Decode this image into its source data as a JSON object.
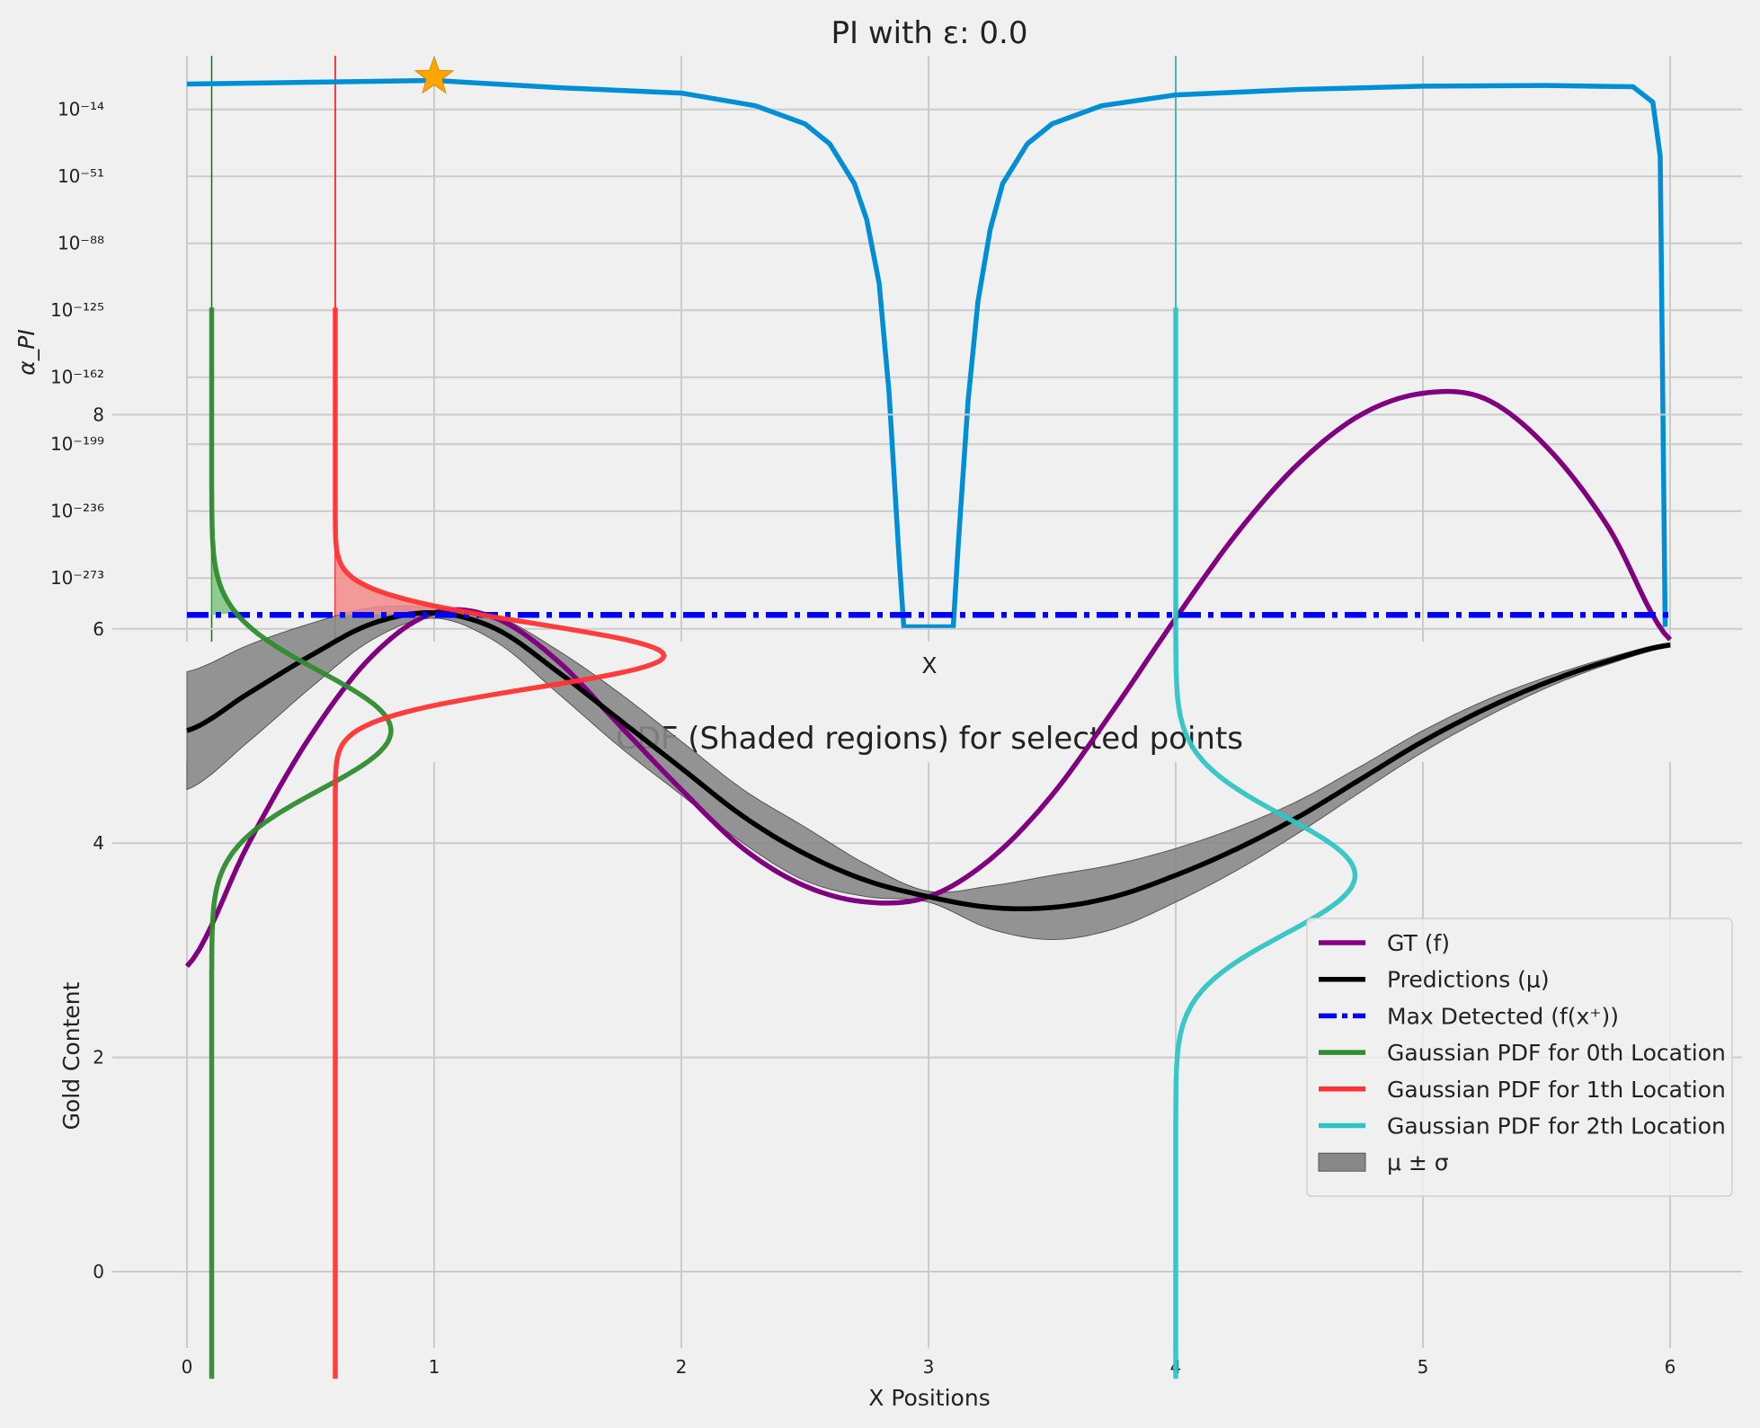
{
  "chart_data": [
    {
      "type": "line",
      "title": "PI with ε: 0.0",
      "xlabel": "X",
      "ylabel": "α_PI",
      "yscale": "log",
      "ytick_exponents": [
        -14,
        -51,
        -88,
        -125,
        -162,
        -199,
        -236,
        -273
      ],
      "ytick_labels": [
        "10⁻¹⁴",
        "10⁻⁵¹",
        "10⁻⁸⁸",
        "10⁻¹²⁵",
        "10⁻¹⁶²",
        "10⁻¹⁹⁹",
        "10⁻²³⁶",
        "10⁻²⁷³"
      ],
      "xlim": [
        0,
        6
      ],
      "x_gridlines": [
        0,
        1,
        2,
        3,
        4,
        5,
        6
      ],
      "grid": true,
      "series": [
        {
          "color": "#008fd5",
          "x": [
            0,
            0.5,
            1.0,
            1.5,
            2.0,
            2.3,
            2.5,
            2.6,
            2.7,
            2.75,
            2.8,
            2.84,
            2.88,
            2.9,
            3.1,
            3.12,
            3.16,
            3.2,
            3.25,
            3.3,
            3.4,
            3.5,
            3.7,
            4.0,
            4.5,
            5.0,
            5.5,
            5.85,
            5.93,
            5.96,
            5.98
          ],
          "log10_y": [
            0,
            1,
            2,
            -2,
            -5,
            -12,
            -22,
            -33,
            -55,
            -75,
            -110,
            -170,
            -260,
            -300,
            -300,
            -255,
            -175,
            -120,
            -80,
            -55,
            -33,
            -22,
            -12,
            -6,
            -3,
            -1.2,
            -0.8,
            -1.5,
            -10,
            -40,
            -300
          ]
        }
      ],
      "vlines": [
        {
          "x": 0.1,
          "color": "#008000"
        },
        {
          "x": 0.6,
          "color": "#ff0000"
        },
        {
          "x": 4.0,
          "color": "#20b2aa"
        }
      ],
      "marker": {
        "x": 1.0,
        "log10_y": 2,
        "shape": "star",
        "color": "#ffa500"
      }
    },
    {
      "type": "line",
      "title": "CDF (Shaded regions) for selected points",
      "xlabel": "X Positions",
      "ylabel": "Gold Content",
      "xlim": [
        -0.3,
        6.3
      ],
      "ylim": [
        -1.5,
        9.5
      ],
      "xticks": [
        0,
        1,
        2,
        3,
        4,
        5,
        6
      ],
      "yticks": [
        0,
        2,
        4,
        6,
        8
      ],
      "grid": true,
      "legend": "right",
      "gt": {
        "name": "GT (f)",
        "color": "#800080",
        "x": [
          0,
          0.25,
          0.5,
          0.75,
          1.0,
          1.25,
          1.5,
          1.75,
          2.0,
          2.25,
          2.5,
          2.75,
          3.0,
          3.25,
          3.5,
          3.75,
          4.0,
          4.25,
          4.5,
          4.75,
          5.0,
          5.25,
          5.5,
          5.75,
          6.0
        ],
        "y": [
          2.85,
          4.0,
          5.0,
          5.75,
          6.15,
          6.1,
          5.7,
          5.1,
          4.5,
          3.95,
          3.6,
          3.45,
          3.5,
          3.85,
          4.45,
          5.25,
          6.1,
          6.9,
          7.55,
          8.0,
          8.2,
          8.15,
          7.7,
          6.95,
          5.9
        ]
      },
      "predictions": {
        "name": "Predictions (μ)",
        "color": "#000000",
        "x": [
          0,
          0.25,
          0.5,
          0.75,
          1.0,
          1.25,
          1.5,
          1.75,
          2.0,
          2.25,
          2.5,
          2.75,
          3.0,
          3.25,
          3.5,
          3.75,
          4.0,
          4.25,
          4.5,
          4.75,
          5.0,
          5.25,
          5.5,
          5.75,
          6.0
        ],
        "y": [
          5.05,
          5.4,
          5.75,
          6.05,
          6.15,
          6.0,
          5.6,
          5.15,
          4.7,
          4.25,
          3.9,
          3.65,
          3.5,
          3.4,
          3.4,
          3.5,
          3.7,
          3.95,
          4.25,
          4.6,
          4.95,
          5.25,
          5.5,
          5.7,
          5.85
        ],
        "sigma": [
          0.55,
          0.45,
          0.3,
          0.15,
          0.05,
          0.12,
          0.2,
          0.25,
          0.25,
          0.25,
          0.25,
          0.15,
          0.05,
          0.2,
          0.3,
          0.3,
          0.25,
          0.2,
          0.15,
          0.12,
          0.1,
          0.08,
          0.05,
          0.03,
          0.02
        ]
      },
      "max_detected": {
        "name": "Max Detected (f(x⁺))",
        "y": 6.13,
        "color": "#0000ff"
      },
      "gaussians": [
        {
          "name": "Gaussian PDF for 0th Location",
          "x0": 0.1,
          "mu": 5.05,
          "sigma": 0.55,
          "amp": 1.0,
          "color": "#2e8b2e",
          "shade": "#7cc47c"
        },
        {
          "name": "Gaussian PDF for 1th Location",
          "x0": 0.6,
          "mu": 5.75,
          "sigma": 0.3,
          "amp": 1.0,
          "color": "#ff3333",
          "shade": "#f58a8a"
        },
        {
          "name": "Gaussian PDF for 2th Location",
          "x0": 4.0,
          "mu": 3.7,
          "sigma": 0.55,
          "amp": 1.0,
          "color": "#2ec4c4",
          "shade": "#9fdede"
        }
      ],
      "gaussian_y_range": [
        -1,
        9
      ],
      "band": {
        "name": "μ ± σ",
        "color": "#888888"
      }
    }
  ],
  "legend_items": [
    {
      "label": "GT (f)",
      "kind": "line",
      "color": "#800080"
    },
    {
      "label": "Predictions (μ)",
      "kind": "line",
      "color": "#000000"
    },
    {
      "label": "Max Detected (f(x⁺))",
      "kind": "dashdot",
      "color": "#0000ff"
    },
    {
      "label": "Gaussian PDF for 0th Location",
      "kind": "line",
      "color": "#2e8b2e"
    },
    {
      "label": "Gaussian PDF for 1th Location",
      "kind": "line",
      "color": "#ff3333"
    },
    {
      "label": "Gaussian PDF for 2th Location",
      "kind": "line",
      "color": "#2ec4c4"
    },
    {
      "label": "μ ± σ",
      "kind": "patch",
      "color": "#888888"
    }
  ]
}
